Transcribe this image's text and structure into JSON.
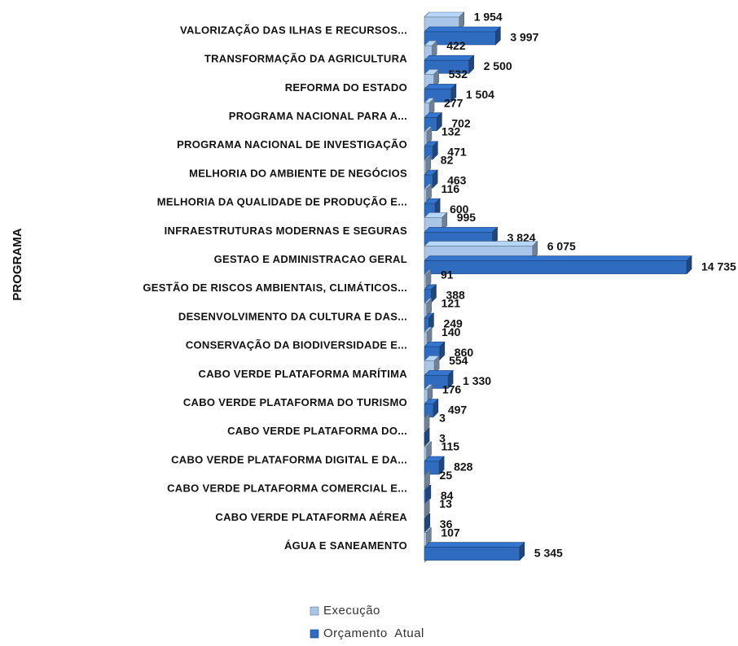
{
  "chart_data": {
    "type": "bar",
    "orientation": "horizontal",
    "y_label": "PROGRAMA",
    "categories": [
      "VALORIZAÇÃO DAS ILHAS E RECURSOS...",
      "TRANSFORMAÇÃO DA AGRICULTURA",
      "REFORMA DO ESTADO",
      "PROGRAMA NACIONAL PARA A...",
      "PROGRAMA NACIONAL DE INVESTIGAÇÃO",
      "MELHORIA DO AMBIENTE DE NEGÓCIOS",
      "MELHORIA DA QUALIDADE DE PRODUÇÃO E...",
      "INFRAESTRUTURAS MODERNAS E SEGURAS",
      "GESTAO E ADMINISTRACAO GERAL",
      "GESTÃO DE RISCOS AMBIENTAIS, CLIMÁTICOS...",
      "DESENVOLVIMENTO DA CULTURA E DAS...",
      "CONSERVAÇÃO DA BIODIVERSIDADE E...",
      "CABO VERDE PLATAFORMA MARÍTIMA",
      "CABO VERDE PLATAFORMA DO TURISMO",
      "CABO VERDE PLATAFORMA DO...",
      "CABO VERDE PLATAFORMA DIGITAL E DA...",
      "CABO VERDE PLATAFORMA COMERCIAL E...",
      "CABO VERDE PLATAFORMA AÉREA",
      "ÁGUA E SANEAMENTO"
    ],
    "series": [
      {
        "name": "Execução",
        "color": "#a9c6e8",
        "values": [
          1954,
          422,
          532,
          277,
          132,
          82,
          116,
          995,
          6075,
          91,
          121,
          140,
          554,
          176,
          3,
          115,
          25,
          13,
          107
        ],
        "value_labels": [
          "1 954",
          "422",
          "532",
          "277",
          "132",
          "82",
          "116",
          "995",
          "6 075",
          "91",
          "121",
          "140",
          "554",
          "176",
          "3",
          "115",
          "25",
          "13",
          "107"
        ]
      },
      {
        "name": "Orçamento  Atual",
        "color": "#2f6cc0",
        "values": [
          3997,
          2500,
          1504,
          702,
          471,
          463,
          600,
          3824,
          14735,
          388,
          249,
          860,
          1330,
          497,
          3,
          828,
          84,
          36,
          5345
        ],
        "value_labels": [
          "3 997",
          "2 500",
          "1 504",
          "702",
          "471",
          "463",
          "600",
          "3 824",
          "14 735",
          "388",
          "249",
          "860",
          "1 330",
          "497",
          "3",
          "828",
          "84",
          "36",
          "5 345"
        ]
      }
    ],
    "legend": "bottom"
  }
}
